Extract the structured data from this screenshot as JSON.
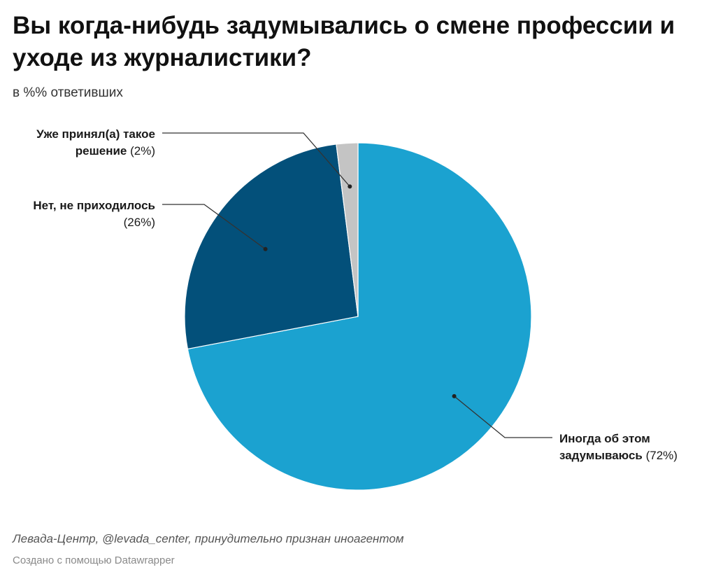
{
  "title": "Вы когда-нибудь задумывались о смене профессии и уходе из журналистики?",
  "subtitle": "в %% ответивших",
  "chart_data": {
    "type": "pie",
    "unit": "%",
    "slices": [
      {
        "name": "Иногда об этом задумываюсь",
        "value": 72,
        "color": "#1ba2d0",
        "label_lines": [
          "Иногда об этом",
          "задумываюсь"
        ]
      },
      {
        "name": "Нет, не приходилось",
        "value": 26,
        "color": "#03507a",
        "label_lines": [
          "Нет, не приходилось",
          ""
        ]
      },
      {
        "name": "Уже принял(а) такое решение",
        "value": 2,
        "color": "#c4c4c4",
        "label_lines": [
          "Уже принял(а) такое",
          "решение"
        ]
      }
    ]
  },
  "footer": {
    "source": "Левада-Центр, @levada_center, принудительно признан иноагентом",
    "credit": "Создано с помощью Datawrapper"
  }
}
